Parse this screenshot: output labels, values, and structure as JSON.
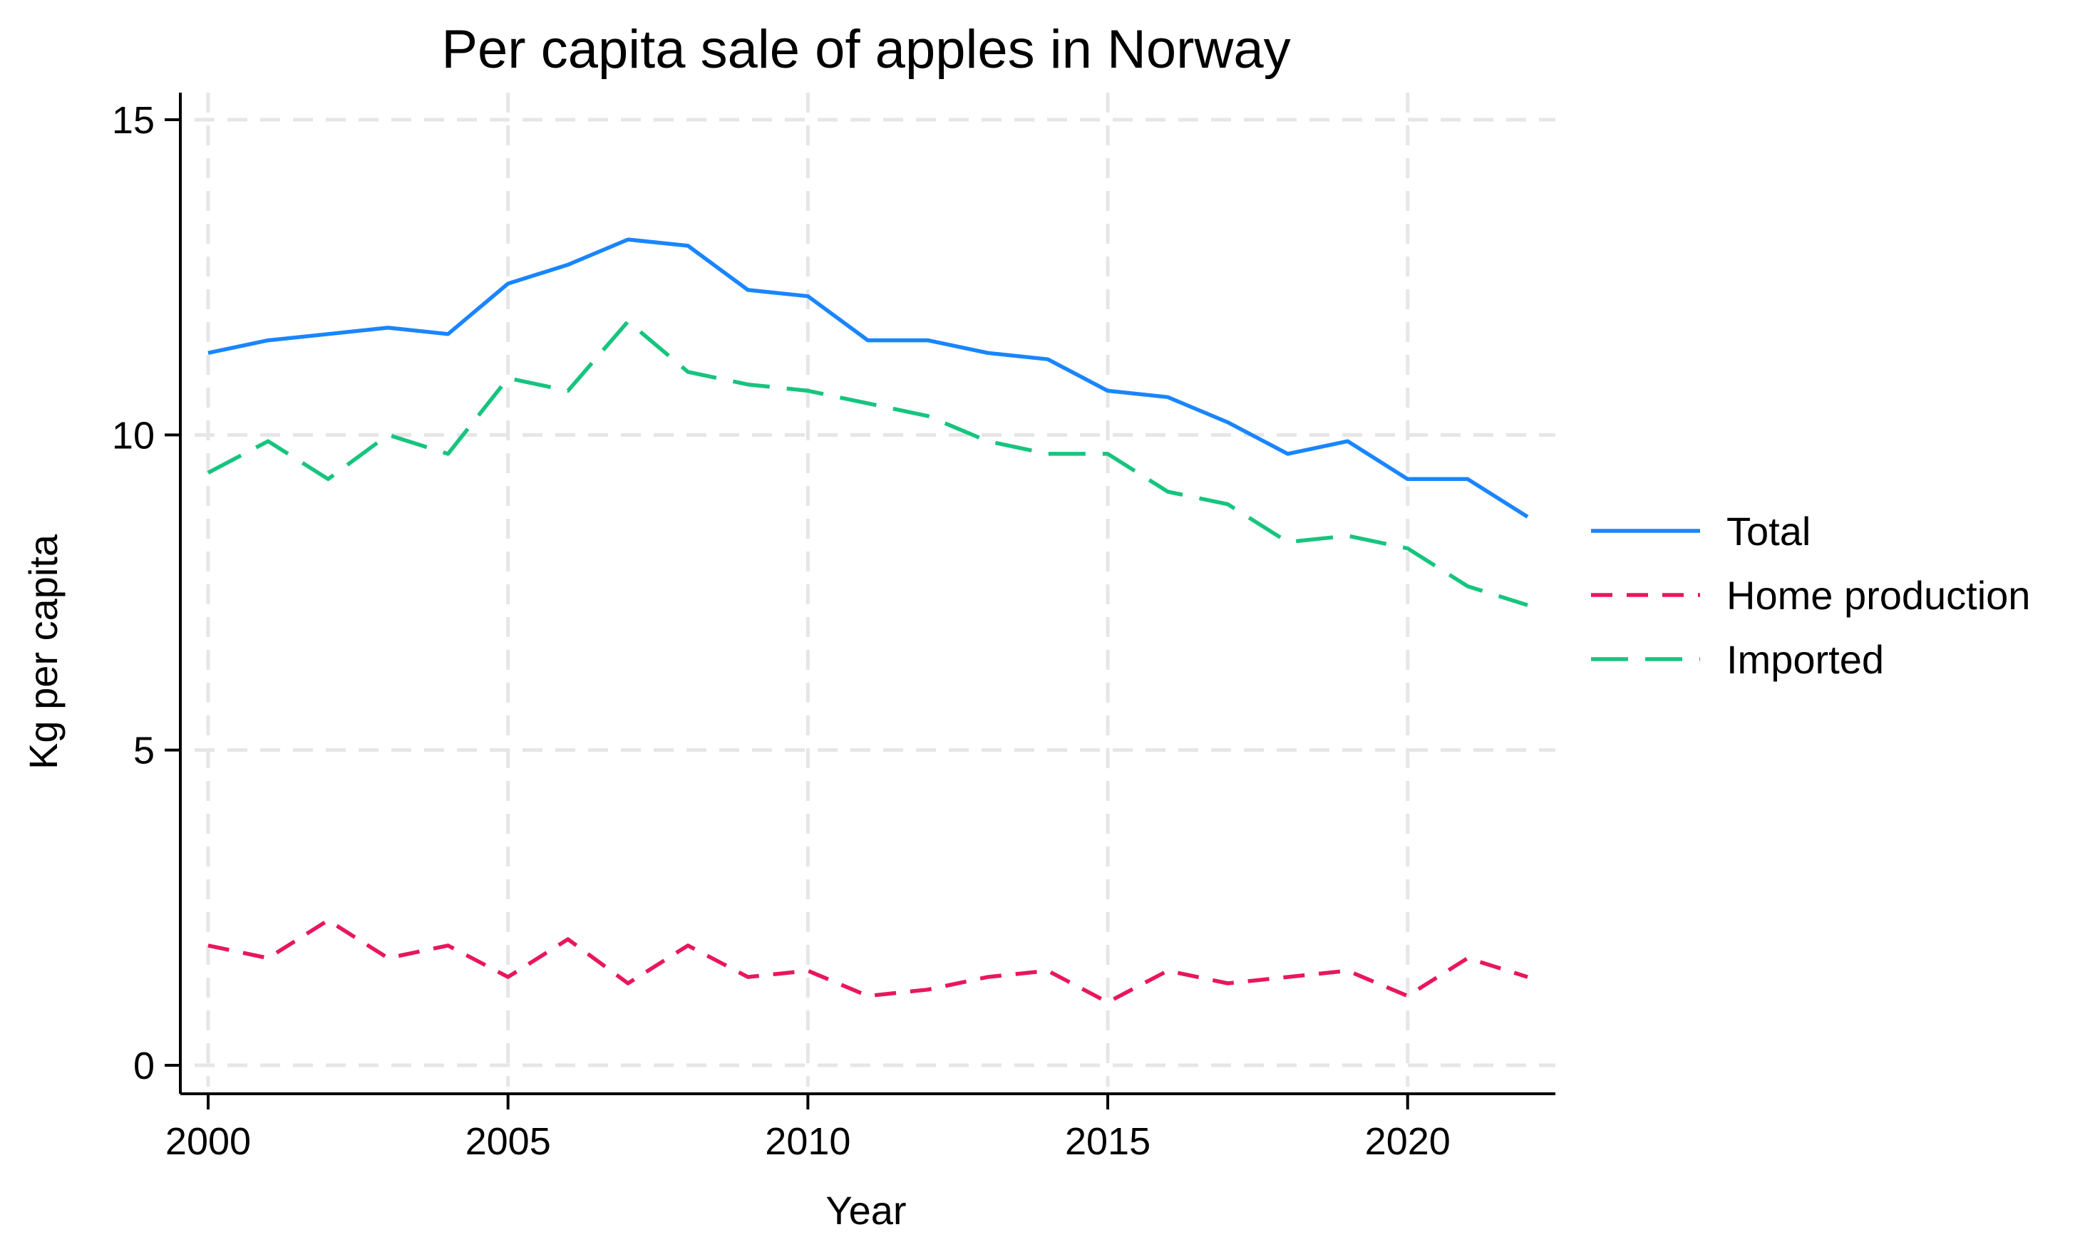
{
  "chart_data": {
    "type": "line",
    "title": "Per capita sale of apples in Norway",
    "xlabel": "Year",
    "ylabel": "Kg per capita",
    "xlim": [
      2000,
      2022
    ],
    "ylim": [
      0,
      15
    ],
    "x_ticks": [
      2000,
      2005,
      2010,
      2015,
      2020
    ],
    "y_ticks": [
      0,
      5,
      10,
      15
    ],
    "grid": true,
    "legend_position": "right",
    "x": [
      2000,
      2001,
      2002,
      2003,
      2004,
      2005,
      2006,
      2007,
      2008,
      2009,
      2010,
      2011,
      2012,
      2013,
      2014,
      2015,
      2016,
      2017,
      2018,
      2019,
      2020,
      2021,
      2022
    ],
    "series": [
      {
        "name": "Total",
        "color": "#1a85ff",
        "dash": "solid",
        "values": [
          11.3,
          11.5,
          11.6,
          11.7,
          11.6,
          12.4,
          12.7,
          13.1,
          13.0,
          12.3,
          12.2,
          11.5,
          11.5,
          11.3,
          11.2,
          10.7,
          10.6,
          10.2,
          9.7,
          9.9,
          9.3,
          9.3,
          8.7
        ]
      },
      {
        "name": "Home production",
        "color": "#e8175d",
        "dash": "short",
        "values": [
          1.9,
          1.7,
          2.3,
          1.7,
          1.9,
          1.4,
          2.0,
          1.3,
          1.9,
          1.4,
          1.5,
          1.1,
          1.2,
          1.4,
          1.5,
          1.0,
          1.5,
          1.3,
          1.4,
          1.5,
          1.1,
          1.7,
          1.4
        ]
      },
      {
        "name": "Imported",
        "color": "#17c47e",
        "dash": "long",
        "values": [
          9.4,
          9.9,
          9.3,
          10.0,
          9.7,
          10.9,
          10.7,
          11.8,
          11.0,
          10.8,
          10.7,
          10.5,
          10.3,
          9.9,
          9.7,
          9.7,
          9.1,
          8.9,
          8.3,
          8.4,
          8.2,
          7.6,
          7.3
        ]
      }
    ]
  }
}
